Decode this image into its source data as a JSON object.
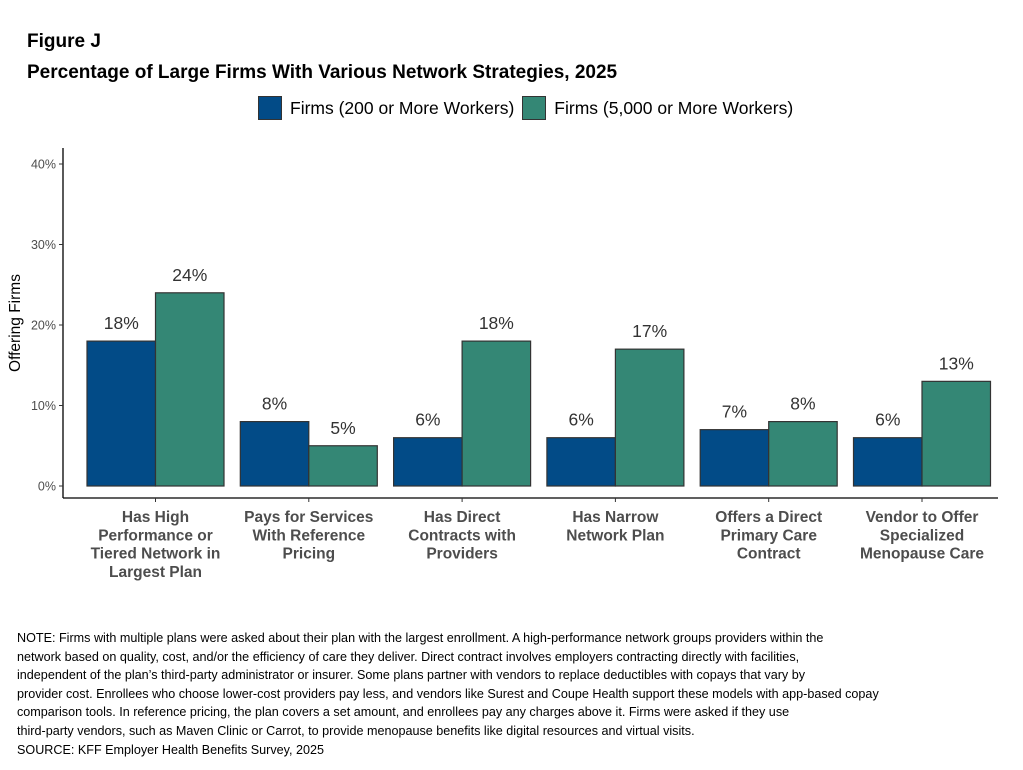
{
  "figure_label": "Figure J",
  "chart_data": {
    "type": "bar",
    "title": "Percentage of Large Firms With Various Network Strategies, 2025",
    "ylabel": "Offering Firms",
    "xlabel": "",
    "ylim": [
      0,
      40
    ],
    "yticks": [
      "0%",
      "10%",
      "20%",
      "30%",
      "40%"
    ],
    "ytick_values": [
      0,
      10,
      20,
      30,
      40
    ],
    "grid": false,
    "legend_position": "top",
    "categories": [
      [
        "Has High",
        "Performance or",
        "Tiered Network in",
        "Largest Plan"
      ],
      [
        "Pays for Services",
        "With Reference",
        "Pricing"
      ],
      [
        "Has Direct",
        "Contracts with",
        "Providers"
      ],
      [
        "Has Narrow",
        "Network Plan"
      ],
      [
        "Offers a Direct",
        "Primary Care",
        "Contract"
      ],
      [
        "Vendor to Offer",
        "Specialized",
        "Menopause Care"
      ]
    ],
    "series": [
      {
        "name": "Firms (200 or More Workers)",
        "color": "#024b87",
        "values": [
          18,
          8,
          6,
          6,
          7,
          6
        ],
        "labels": [
          "18%",
          "8%",
          "6%",
          "6%",
          "7%",
          "6%"
        ]
      },
      {
        "name": "Firms (5,000 or More Workers)",
        "color": "#348775",
        "values": [
          24,
          5,
          18,
          17,
          8,
          13
        ],
        "labels": [
          "24%",
          "5%",
          "18%",
          "17%",
          "8%",
          "13%"
        ]
      }
    ]
  },
  "notes": [
    "NOTE: Firms with multiple plans were asked about their plan with the largest enrollment.  A high-performance network groups providers within the",
    "network based on quality, cost, and/or the efficiency of care they deliver.  Direct contract involves employers contracting directly with facilities,",
    "independent of the plan’s third-party administrator or insurer.  Some plans partner with vendors to replace deductibles with copays that vary by",
    "provider cost. Enrollees who choose lower-cost providers pay less, and vendors like Surest and Coupe Health support these models with app-based copay",
    "comparison tools. In reference pricing, the plan covers a set amount, and enrollees pay any charges above it. Firms were asked if they use",
    "third-party vendors, such as Maven Clinic or Carrot, to provide menopause benefits like digital resources and virtual visits.",
    "SOURCE: KFF Employer Health Benefits Survey, 2025"
  ]
}
